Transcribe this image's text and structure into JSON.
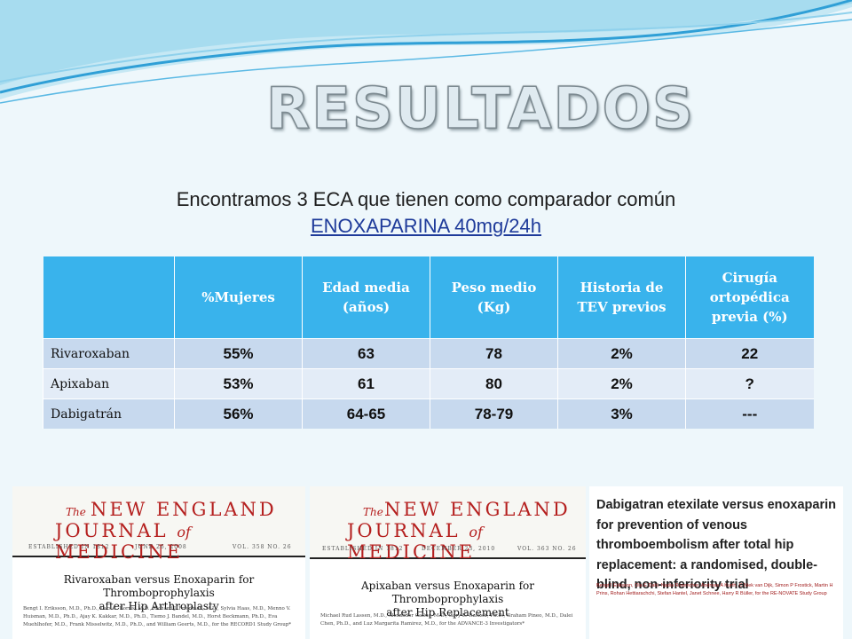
{
  "slide": {
    "title": "RESULTADOS",
    "subtitle_line1": "Encontramos 3 ECA que tienen como comparador común",
    "subtitle_link": "ENOXAPARINA 40mg/24h"
  },
  "table": {
    "headers": [
      "%Mujeres",
      "Edad media (años)",
      "Peso medio (Kg)",
      "Historia de TEV previos",
      "Cirugía ortopédica previa (%)"
    ],
    "rows": [
      {
        "label": "Rivaroxaban",
        "mujeres": "55%",
        "edad": "63",
        "peso": "78",
        "tev": "2%",
        "cirugia": "22"
      },
      {
        "label": "Apixaban",
        "mujeres": "53%",
        "edad": "61",
        "peso": "80",
        "tev": "2%",
        "cirugia": "?"
      },
      {
        "label": "Dabigatrán",
        "mujeres": "56%",
        "edad": "64-65",
        "peso": "78-79",
        "tev": "3%",
        "cirugia": "---"
      }
    ]
  },
  "journals": [
    {
      "the": "The",
      "line1": "NEW ENGLAND",
      "line2_a": "JOURNAL",
      "line2_of": "of",
      "line2_b": "MEDICINE",
      "established": "ESTABLISHED IN 1812",
      "date": "JUNE 26, 2008",
      "volume": "VOL. 358   NO. 26",
      "article_title_1": "Rivaroxaban versus Enoxaparin for Thromboprophylaxis",
      "article_title_2": "after Hip Arthroplasty",
      "authors": "Bengt I. Eriksson, M.D., Ph.D., Lars C. Borris, M.D., Richard J. Friedman, M.D., Sylvia Haas, M.D., Menno V. Huisman, M.D., Ph.D., Ajay K. Kakkar, M.D., Ph.D., Tiemo J. Bandel, M.D., Horst Beckmann, Ph.D., Eva Muehlhofer, M.D., Frank Misselwitz, M.D., Ph.D., and William Geerts, M.D., for the RECORD1 Study Group*"
    },
    {
      "the": "The",
      "line1": "NEW ENGLAND",
      "line2_a": "JOURNAL",
      "line2_of": "of",
      "line2_b": "MEDICINE",
      "established": "ESTABLISHED IN 1812",
      "date": "DECEMBER 23, 2010",
      "volume": "VOL. 363   NO. 26",
      "article_title_1": "Apixaban versus Enoxaparin for Thromboprophylaxis",
      "article_title_2": "after Hip Replacement",
      "authors": "Michael Rud Lassen, M.D., Alexander Gallus, M.D., Gary E. Raskob, Ph.D., Graham Pineo, M.D., Dalei Chen, Ph.D., and Luz Margarita Ramirez, M.D., for the ADVANCE-3 Investigators*"
    }
  ],
  "lancet": {
    "title": "Dabigatran etexilate versus enoxaparin for prevention of venous thromboembolism after total hip replacement: a randomised, double-blind, non-inferiority trial",
    "authors": "Bengt I Eriksson, Ola E Dahl, Nadia Rosencher, Andreas A Kurth, C Niek van Dijk, Simon P Frostick, Martin H Prins, Rohan Hettiarachchi, Stefan Hantel, Janet Schnee, Harry R Büller, for the RE-NOVATE Study Group"
  },
  "colors": {
    "background": "#eef7fb",
    "header_fill": "#39b3ec",
    "row_dark": "#c7d9ee",
    "row_light": "#e3ecf7",
    "link": "#1f3b9a",
    "journal_red": "#b5201f"
  }
}
